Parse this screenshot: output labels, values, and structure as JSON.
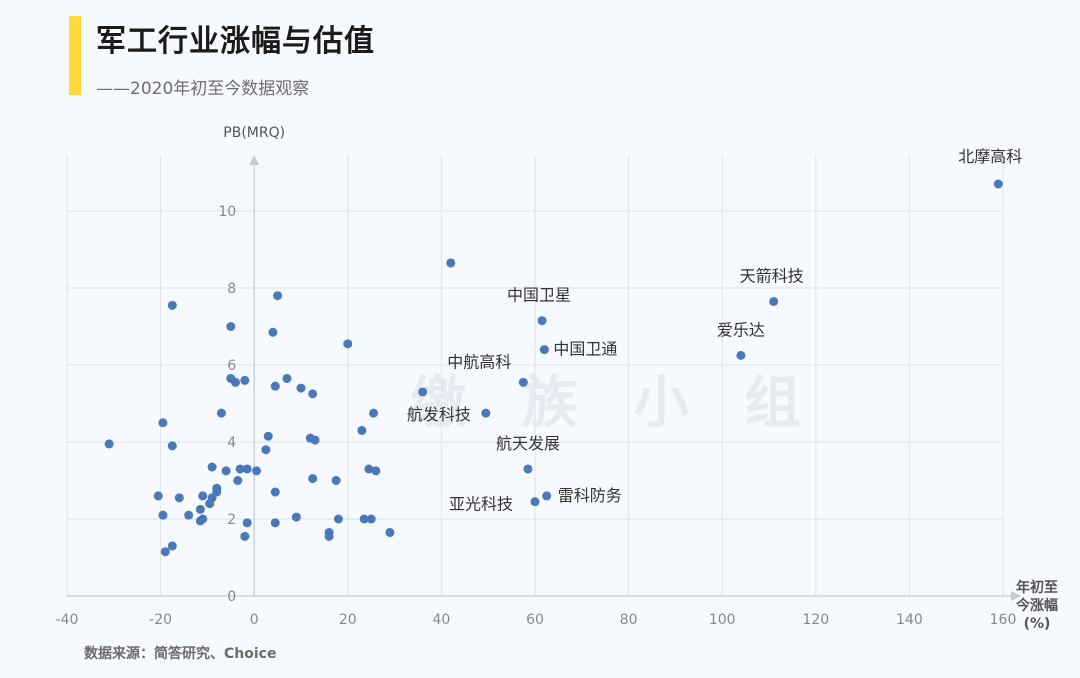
{
  "header": {
    "title": "军工行业涨幅与估值",
    "subtitle": "——2020年初至今数据观察"
  },
  "footer": {
    "source": "数据来源：简答研究、Choice"
  },
  "watermark": "缴 族 小 组",
  "colors": {
    "accent": "#ffd83c",
    "point": "#4a78b8",
    "grid": "#dfe4ea"
  },
  "chart_data": {
    "type": "scatter",
    "title": "军工行业涨幅与估值",
    "subtitle": "——2020年初至今数据观察",
    "xlabel": "年初至今涨幅(%)",
    "xlabel_lines": [
      "年初至",
      "今涨幅",
      "(%)"
    ],
    "ylabel": "PB(MRQ)",
    "xlim": [
      -40,
      160
    ],
    "ylim": [
      0,
      11.5
    ],
    "x_ticks": [
      -40,
      -20,
      0,
      20,
      40,
      60,
      80,
      100,
      120,
      140,
      160
    ],
    "y_ticks": [
      0,
      2,
      4,
      6,
      8,
      10
    ],
    "grid": true,
    "legend": "none",
    "labeled_points": [
      {
        "label": "北摩高科",
        "x": 159,
        "y": 10.7
      },
      {
        "label": "天箭科技",
        "x": 111,
        "y": 7.65
      },
      {
        "label": "爱乐达",
        "x": 104,
        "y": 6.25
      },
      {
        "label": "中国卫星",
        "x": 61.5,
        "y": 7.15
      },
      {
        "label": "中国卫通",
        "x": 62,
        "y": 6.4
      },
      {
        "label": "中航高科",
        "x": 57.5,
        "y": 5.55
      },
      {
        "label": "航发科技",
        "x": 49.5,
        "y": 4.75
      },
      {
        "label": "航天发展",
        "x": 58.5,
        "y": 3.3
      },
      {
        "label": "雷科防务",
        "x": 62.5,
        "y": 2.6
      },
      {
        "label": "亚光科技",
        "x": 60,
        "y": 2.45
      }
    ],
    "points": [
      {
        "x": 42,
        "y": 8.65
      },
      {
        "x": 36,
        "y": 5.3
      },
      {
        "x": -31,
        "y": 3.95
      },
      {
        "x": -20.5,
        "y": 2.6
      },
      {
        "x": -19.5,
        "y": 2.1
      },
      {
        "x": -19.5,
        "y": 4.5
      },
      {
        "x": -19,
        "y": 1.15
      },
      {
        "x": -17.5,
        "y": 1.3
      },
      {
        "x": -17.5,
        "y": 3.9
      },
      {
        "x": -17.5,
        "y": 7.55
      },
      {
        "x": -16,
        "y": 2.55
      },
      {
        "x": -14,
        "y": 2.1
      },
      {
        "x": -11.5,
        "y": 1.95
      },
      {
        "x": -11.5,
        "y": 2.25
      },
      {
        "x": -11,
        "y": 2.0
      },
      {
        "x": -11,
        "y": 2.6
      },
      {
        "x": -9.5,
        "y": 2.4
      },
      {
        "x": -9,
        "y": 2.55
      },
      {
        "x": -9,
        "y": 3.35
      },
      {
        "x": -8,
        "y": 2.7
      },
      {
        "x": -8,
        "y": 2.8
      },
      {
        "x": -7,
        "y": 4.75
      },
      {
        "x": -6,
        "y": 3.25
      },
      {
        "x": -5,
        "y": 7.0
      },
      {
        "x": -5,
        "y": 5.65
      },
      {
        "x": -4,
        "y": 5.55
      },
      {
        "x": -3.5,
        "y": 3.0
      },
      {
        "x": -3,
        "y": 3.3
      },
      {
        "x": -2,
        "y": 5.6
      },
      {
        "x": -2,
        "y": 1.55
      },
      {
        "x": -1.5,
        "y": 1.9
      },
      {
        "x": -1.5,
        "y": 3.3
      },
      {
        "x": 0.5,
        "y": 3.25
      },
      {
        "x": 2.5,
        "y": 3.8
      },
      {
        "x": 3,
        "y": 4.15
      },
      {
        "x": 4,
        "y": 6.85
      },
      {
        "x": 4.5,
        "y": 5.45
      },
      {
        "x": 4.5,
        "y": 2.7
      },
      {
        "x": 4.5,
        "y": 1.9
      },
      {
        "x": 5,
        "y": 7.8
      },
      {
        "x": 7,
        "y": 5.65
      },
      {
        "x": 9,
        "y": 2.05
      },
      {
        "x": 10,
        "y": 5.4
      },
      {
        "x": 12,
        "y": 4.1
      },
      {
        "x": 12.5,
        "y": 3.05
      },
      {
        "x": 12.5,
        "y": 5.25
      },
      {
        "x": 13,
        "y": 4.05
      },
      {
        "x": 16,
        "y": 1.55
      },
      {
        "x": 16,
        "y": 1.65
      },
      {
        "x": 17.5,
        "y": 3.0
      },
      {
        "x": 18,
        "y": 2.0
      },
      {
        "x": 20,
        "y": 6.55
      },
      {
        "x": 23,
        "y": 4.3
      },
      {
        "x": 23.5,
        "y": 2.0
      },
      {
        "x": 24.5,
        "y": 3.3
      },
      {
        "x": 25,
        "y": 2.0
      },
      {
        "x": 25.5,
        "y": 4.75
      },
      {
        "x": 26,
        "y": 3.25
      },
      {
        "x": 29,
        "y": 1.65
      }
    ]
  }
}
